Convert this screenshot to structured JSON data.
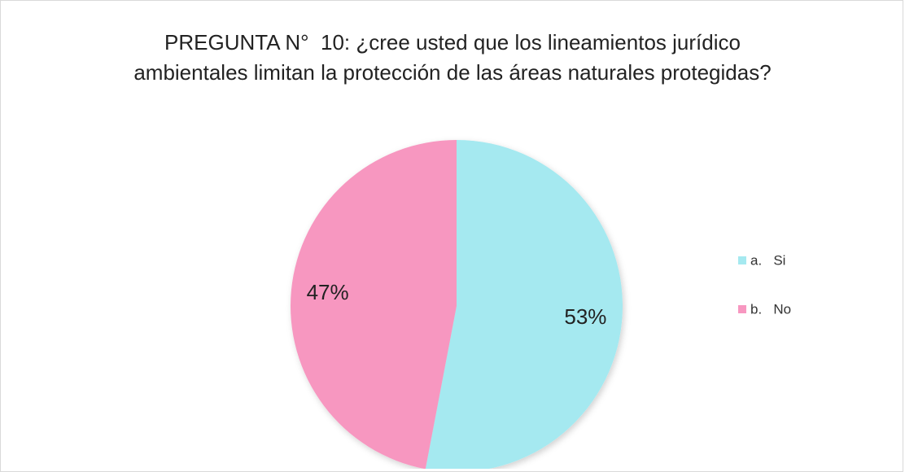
{
  "chart_data": {
    "type": "pie",
    "title": "PREGUNTA N°  10: ¿cree usted que los lineamientos jurídico ambientales limitan la protección de las áreas naturales protegidas?",
    "categories": [
      "a.   Si",
      "b.   No"
    ],
    "values": [
      53,
      47
    ],
    "value_labels": [
      "53%",
      "47%"
    ],
    "colors": [
      "#a5e9f0",
      "#f797c0"
    ],
    "legend": "right"
  }
}
